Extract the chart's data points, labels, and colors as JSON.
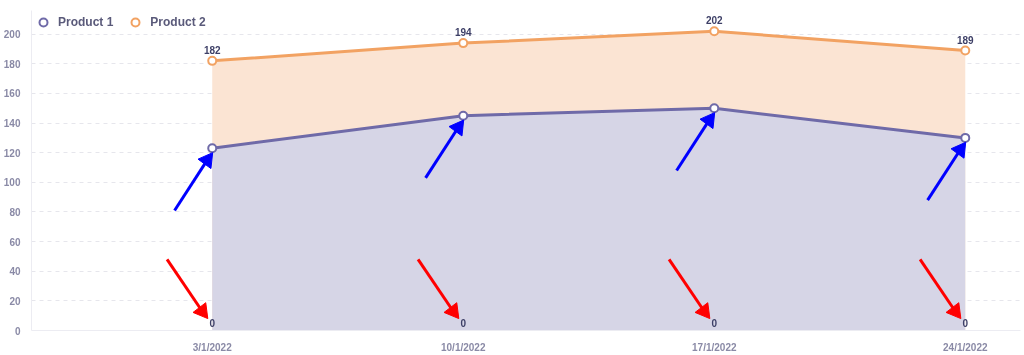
{
  "chart_data": {
    "type": "area",
    "categories": [
      "3/1/2022",
      "10/1/2022",
      "17/1/2022",
      "24/1/2022"
    ],
    "series": [
      {
        "name": "Product 1",
        "color": "#6f6aa8",
        "values": [
          123,
          145,
          150,
          130
        ]
      },
      {
        "name": "Product 2",
        "color": "#f2a262",
        "values": [
          182,
          194,
          202,
          189
        ],
        "value_labels": [
          "182",
          "194",
          "202",
          "189"
        ]
      }
    ],
    "annotations": [
      {
        "text": "0",
        "x": "3/1/2022",
        "y": 0
      },
      {
        "text": "0",
        "x": "10/1/2022",
        "y": 0
      },
      {
        "text": "0",
        "x": "17/1/2022",
        "y": 0
      },
      {
        "text": "0",
        "x": "24/1/2022",
        "y": 0
      }
    ],
    "ylim": [
      0,
      216
    ],
    "yticks": [
      0,
      20,
      40,
      60,
      80,
      100,
      120,
      140,
      160,
      180,
      200
    ],
    "grid": "y",
    "legend": "top left",
    "marker": "circle",
    "line_style": "solid"
  }
}
